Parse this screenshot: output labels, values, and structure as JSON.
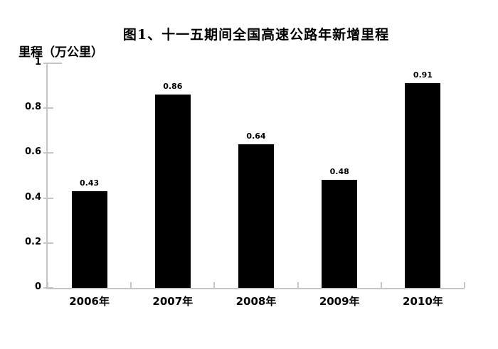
{
  "chart_data": {
    "type": "bar",
    "title": "图1、十一五期间全国高速公路年新增里程",
    "y_axis_label": "里程（万公里）",
    "categories": [
      "2006年",
      "2007年",
      "2008年",
      "2009年",
      "2010年"
    ],
    "values": [
      0.43,
      0.86,
      0.64,
      0.48,
      0.91
    ],
    "data_labels": [
      "0.43",
      "0.86",
      "0.64",
      "0.48",
      "0.91"
    ],
    "y_ticks": [
      "0",
      "0.2",
      "0.4",
      "0.6",
      "0.8",
      "1"
    ],
    "y_tick_values": [
      0,
      0.2,
      0.4,
      0.6,
      0.8,
      1
    ],
    "ylim": [
      0,
      1
    ],
    "grid": false,
    "legend": false,
    "bar_color": "#000000",
    "axis_color": "#c6c6c6",
    "text_color": "#000000"
  }
}
